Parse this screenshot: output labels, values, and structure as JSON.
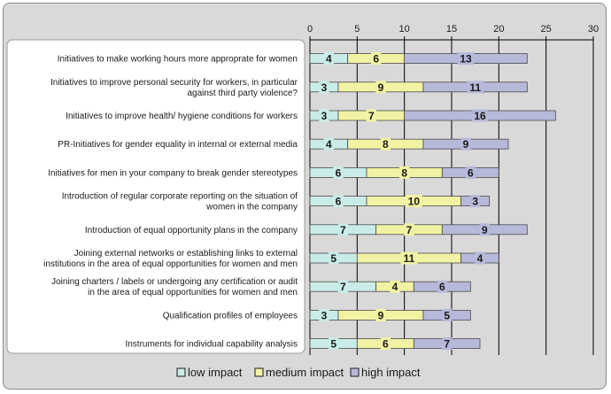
{
  "chart_data": {
    "type": "bar",
    "orientation": "horizontal",
    "stacked": true,
    "categories": [
      [
        "Initiatives to make working hours more approprate for women"
      ],
      [
        "Initiatives to improve personal security for workers, in particular",
        "against third party violence?"
      ],
      [
        "Initiatives to improve health/ hygiene conditions for workers"
      ],
      [
        "PR-Initiatives for gender equality in internal or external media"
      ],
      [
        "Initiatives for men in your company to break gender stereotypes"
      ],
      [
        "Introduction of regular corporate reporting on the situation of",
        "women in the company"
      ],
      [
        "Introduction of equal opportunity plans in the company"
      ],
      [
        "Joining external networks or establishing links to external",
        "institutions in the area of equal opportunities for women and men"
      ],
      [
        "Joining charters / labels or undergoing any certification or audit",
        "in the area of equal opportunities for women and men"
      ],
      [
        "Qualification profiles of employees"
      ],
      [
        "Instruments for individual capability analysis"
      ]
    ],
    "series": [
      {
        "name": "low impact",
        "color": "#c9ece8",
        "values": [
          4,
          3,
          3,
          4,
          6,
          6,
          7,
          5,
          7,
          3,
          5
        ]
      },
      {
        "name": "medium impact",
        "color": "#f2f2a4",
        "values": [
          6,
          9,
          7,
          8,
          8,
          10,
          7,
          11,
          4,
          9,
          6
        ]
      },
      {
        "name": "high impact",
        "color": "#b7b9da",
        "values": [
          13,
          11,
          16,
          9,
          6,
          3,
          9,
          4,
          6,
          5,
          7
        ]
      }
    ],
    "xlim": [
      0,
      30
    ],
    "xticks": [
      0,
      5,
      10,
      15,
      20,
      25,
      30
    ],
    "axis_position": "top",
    "grid": true,
    "legend": "bottom"
  }
}
